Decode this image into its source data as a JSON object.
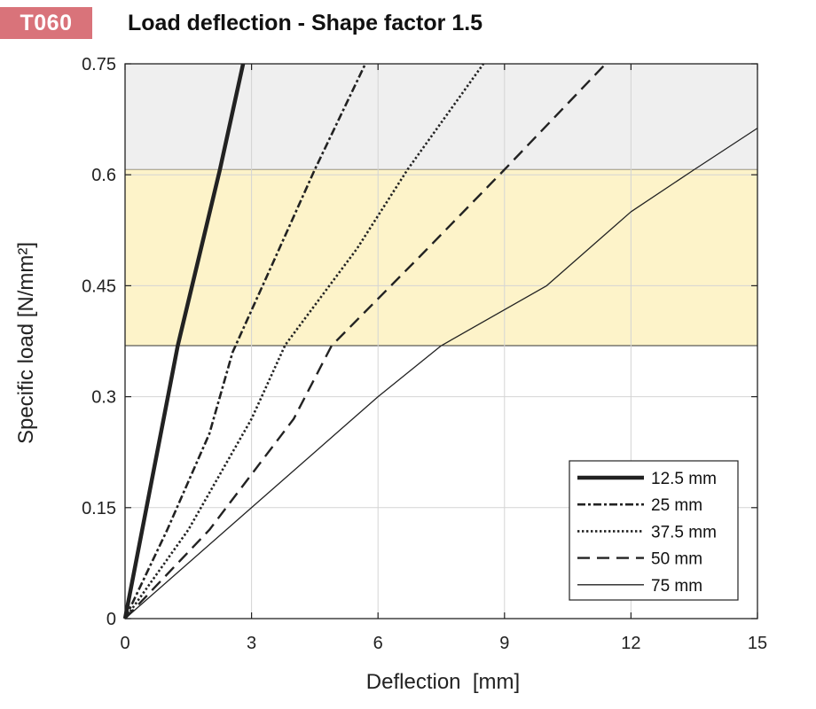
{
  "header": {
    "badge": "T060",
    "title": "Load deflection - Shape factor 1.5"
  },
  "colors": {
    "badge": "#d9737a",
    "band_gray": "#efefef",
    "band_yellow": "#fdf3c9",
    "lines": "#222222"
  },
  "chart_data": {
    "type": "line",
    "title": "Load deflection - Shape factor 1.5",
    "xlabel": "Deflection  [mm]",
    "ylabel": "Specific load [N/mm²]",
    "xlim": [
      0,
      15
    ],
    "ylim": [
      0,
      0.75
    ],
    "x_ticks": [
      0,
      3,
      6,
      9,
      12,
      15
    ],
    "x_tick_labels": [
      "0",
      "3",
      "6",
      "9",
      "12",
      "15"
    ],
    "y_ticks": [
      0,
      0.15,
      0.3,
      0.45,
      0.6,
      0.75
    ],
    "y_tick_labels": [
      "0",
      "0.15",
      "0.3",
      "0.45",
      "0.6",
      "0.75"
    ],
    "grid": true,
    "legend_position": "bottom-right",
    "bands": [
      {
        "name": "gray",
        "y_from": 0.607,
        "y_to": 0.75,
        "color": "#efefef"
      },
      {
        "name": "yellow",
        "y_from": 0.369,
        "y_to": 0.607,
        "color": "#fdf3c9"
      }
    ],
    "series": [
      {
        "name": "12.5 mm",
        "style": "solid-thick",
        "x": [
          0,
          1.25,
          2.25,
          2.8
        ],
        "y": [
          0,
          0.369,
          0.607,
          0.75
        ]
      },
      {
        "name": "25 mm",
        "style": "dashdot",
        "x": [
          0,
          1.0,
          2.0,
          2.55,
          3.5,
          4.5,
          5.7
        ],
        "y": [
          0,
          0.12,
          0.25,
          0.36,
          0.48,
          0.607,
          0.75
        ]
      },
      {
        "name": "37.5 mm",
        "style": "dotted",
        "x": [
          0,
          1.5,
          3.0,
          3.8,
          5.5,
          6.7,
          8.5
        ],
        "y": [
          0,
          0.12,
          0.27,
          0.37,
          0.5,
          0.607,
          0.75
        ]
      },
      {
        "name": "50 mm",
        "style": "dashed",
        "x": [
          0,
          2.0,
          4.0,
          4.9,
          7.0,
          9.0,
          11.4
        ],
        "y": [
          0,
          0.12,
          0.27,
          0.369,
          0.49,
          0.607,
          0.75
        ]
      },
      {
        "name": "75 mm",
        "style": "solid-thin",
        "x": [
          0,
          3.0,
          6.0,
          7.5,
          10.0,
          12.0,
          13.5,
          15.0
        ],
        "y": [
          0,
          0.15,
          0.3,
          0.369,
          0.45,
          0.55,
          0.607,
          0.663
        ]
      }
    ]
  }
}
